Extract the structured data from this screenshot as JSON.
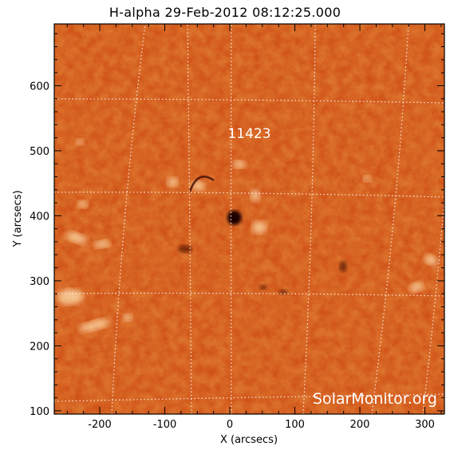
{
  "title": "H-alpha 29-Feb-2012 08:12:25.000",
  "x_axis": {
    "label": "X (arcsecs)",
    "range": [
      -270,
      330
    ],
    "ticks": [
      {
        "value": -200,
        "label": "-200"
      },
      {
        "value": -100,
        "label": "-100"
      },
      {
        "value": 0,
        "label": "0"
      },
      {
        "value": 100,
        "label": "100"
      },
      {
        "value": 200,
        "label": "200"
      },
      {
        "value": 300,
        "label": "300"
      }
    ]
  },
  "y_axis": {
    "label": "Y (arcsecs)",
    "range": [
      95,
      695
    ],
    "ticks": [
      {
        "value": 100,
        "label": "100"
      },
      {
        "value": 200,
        "label": "200"
      },
      {
        "value": 300,
        "label": "300"
      },
      {
        "value": 400,
        "label": "400"
      },
      {
        "value": 500,
        "label": "500"
      },
      {
        "value": 600,
        "label": "600"
      }
    ]
  },
  "active_region": {
    "label": "11423",
    "x": 30,
    "y": 527
  },
  "sunspot": {
    "x": 7,
    "y": 397
  },
  "watermark": "SolarMonitor.org",
  "grid": "on (heliographic, dotted white)",
  "colors": {
    "base": "#c8480e",
    "dark": "#5a1200",
    "bright": "#ffe0b0",
    "frame": "#000000",
    "grid": "#ffffff"
  }
}
